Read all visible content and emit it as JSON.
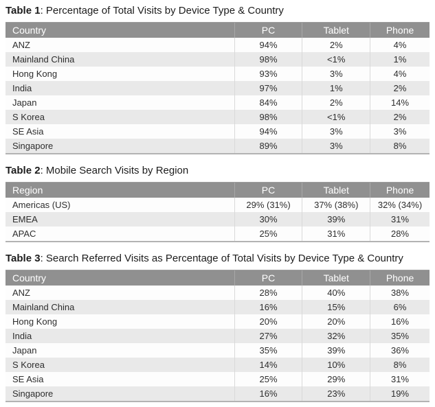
{
  "colors": {
    "header_bg": "#909090",
    "header_text": "#ffffff",
    "header_divider": "#a8a8a8",
    "row_alt_bg": "#e9e9e9",
    "body_divider": "#d9d9d9",
    "table_bottom_border": "#b3b3b3",
    "body_text": "#2d2d2d",
    "title_text": "#1c1c1c"
  },
  "tables": [
    {
      "label": "Table 1",
      "caption": ": Percentage of Total Visits by Device Type & Country",
      "columns": [
        "Country",
        "PC",
        "Tablet",
        "Phone"
      ],
      "rows": [
        [
          "ANZ",
          "94%",
          "2%",
          "4%"
        ],
        [
          "Mainland China",
          "98%",
          "<1%",
          "1%"
        ],
        [
          "Hong Kong",
          "93%",
          "3%",
          "4%"
        ],
        [
          "India",
          "97%",
          "1%",
          "2%"
        ],
        [
          "Japan",
          "84%",
          "2%",
          "14%"
        ],
        [
          "S Korea",
          "98%",
          "<1%",
          "2%"
        ],
        [
          "SE Asia",
          "94%",
          "3%",
          "3%"
        ],
        [
          "Singapore",
          "89%",
          "3%",
          "8%"
        ]
      ]
    },
    {
      "label": "Table 2",
      "caption": ": Mobile Search Visits by Region",
      "columns": [
        "Region",
        "PC",
        "Tablet",
        "Phone"
      ],
      "rows": [
        [
          "Americas (US)",
          "29% (31%)",
          "37% (38%)",
          "32% (34%)"
        ],
        [
          "EMEA",
          "30%",
          "39%",
          "31%"
        ],
        [
          "APAC",
          "25%",
          "31%",
          "28%"
        ]
      ]
    },
    {
      "label": "Table 3",
      "caption": ": Search Referred Visits as Percentage of Total Visits by Device Type & Country",
      "columns": [
        "Country",
        "PC",
        "Tablet",
        "Phone"
      ],
      "rows": [
        [
          "ANZ",
          "28%",
          "40%",
          "38%"
        ],
        [
          "Mainland China",
          "16%",
          "15%",
          "6%"
        ],
        [
          "Hong Kong",
          "20%",
          "20%",
          "16%"
        ],
        [
          "India",
          "27%",
          "32%",
          "35%"
        ],
        [
          "Japan",
          "35%",
          "39%",
          "36%"
        ],
        [
          "S Korea",
          "14%",
          "10%",
          "8%"
        ],
        [
          "SE Asia",
          "25%",
          "29%",
          "31%"
        ],
        [
          "Singapore",
          "16%",
          "23%",
          "19%"
        ]
      ]
    }
  ]
}
